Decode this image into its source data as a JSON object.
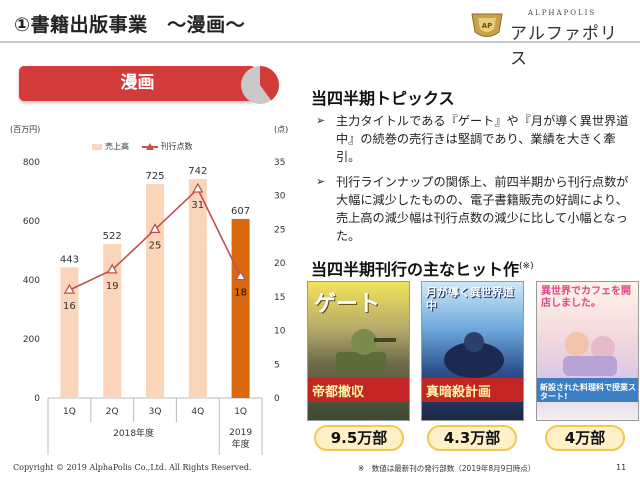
{
  "header": {
    "title": "①書籍出版事業　～漫画～",
    "logo_sub": "ALPHAPOLIS",
    "logo_main": "アルファポリス"
  },
  "segment": {
    "label": "漫画",
    "share_fraction": 0.4
  },
  "chart_data": {
    "type": "bar+line",
    "categories": [
      "1Q",
      "2Q",
      "3Q",
      "4Q",
      "1Q"
    ],
    "period_labels": [
      {
        "text": "2018年度",
        "spans": [
          0,
          3
        ]
      },
      {
        "text": "2019\n年度",
        "spans": [
          4,
          4
        ]
      }
    ],
    "period_label_2019_line1": "2019",
    "period_label_2019_line2": "年度",
    "series": [
      {
        "name": "売上高",
        "type": "bar",
        "axis": "left",
        "values": [
          443,
          522,
          725,
          742,
          607
        ]
      },
      {
        "name": "刊行点数",
        "type": "line",
        "axis": "right",
        "values": [
          16,
          19,
          25,
          31,
          18
        ]
      }
    ],
    "left_axis": {
      "unit": "(百万円)",
      "range": [
        0,
        800
      ],
      "ticks": [
        0,
        200,
        400,
        600,
        800
      ]
    },
    "right_axis": {
      "unit": "(点)",
      "range": [
        0,
        35
      ],
      "ticks": [
        0,
        5,
        10,
        15,
        20,
        25,
        30,
        35
      ]
    },
    "highlight_index": 4,
    "colors": {
      "bar": "#fbd5b9",
      "bar_highlight": "#d9680f",
      "line": "#c0504d"
    },
    "grid": false,
    "legend": "top"
  },
  "topics": {
    "title": "当四半期トピックス",
    "bullets": [
      "主力タイトルである『ゲート』や『月が導く異世界道中』の続巻の売行きは堅調であり、業績を大きく牽引。",
      "刊行ラインナップの関係上、前四半期から刊行点数が大幅に減少したものの、電子書籍販売の好調により、売上高の減少幅は刊行点数の減少に比して小幅となった。"
    ],
    "bullet_mark": "➢"
  },
  "hits": {
    "title": "当四半期刊行の主なヒット作",
    "note_mark": "(※)",
    "books": [
      {
        "cover_text": "ゲート",
        "banner_text": "帝都撤収",
        "sales": "9.5万部"
      },
      {
        "cover_text": "月が導く異世界道中",
        "banner_text": "真暗殺計画",
        "sales": "4.3万部"
      },
      {
        "cover_text": "異世界でカフェを開店しました。",
        "banner_text": "新設された料理科で授業スタート!",
        "sales": "4万部"
      }
    ]
  },
  "footer": {
    "copyright": "Copyright © 2019 AlphaPolis Co.,Ltd.  All Rights Reserved.",
    "footnote": "※　数値は最新刊の発行部数（2019年8月9日時点）",
    "page_number": "11"
  },
  "colors": {
    "banner": "#d43b3b",
    "badge_fill": "#fff0c8",
    "badge_border": "#f4c84b"
  }
}
